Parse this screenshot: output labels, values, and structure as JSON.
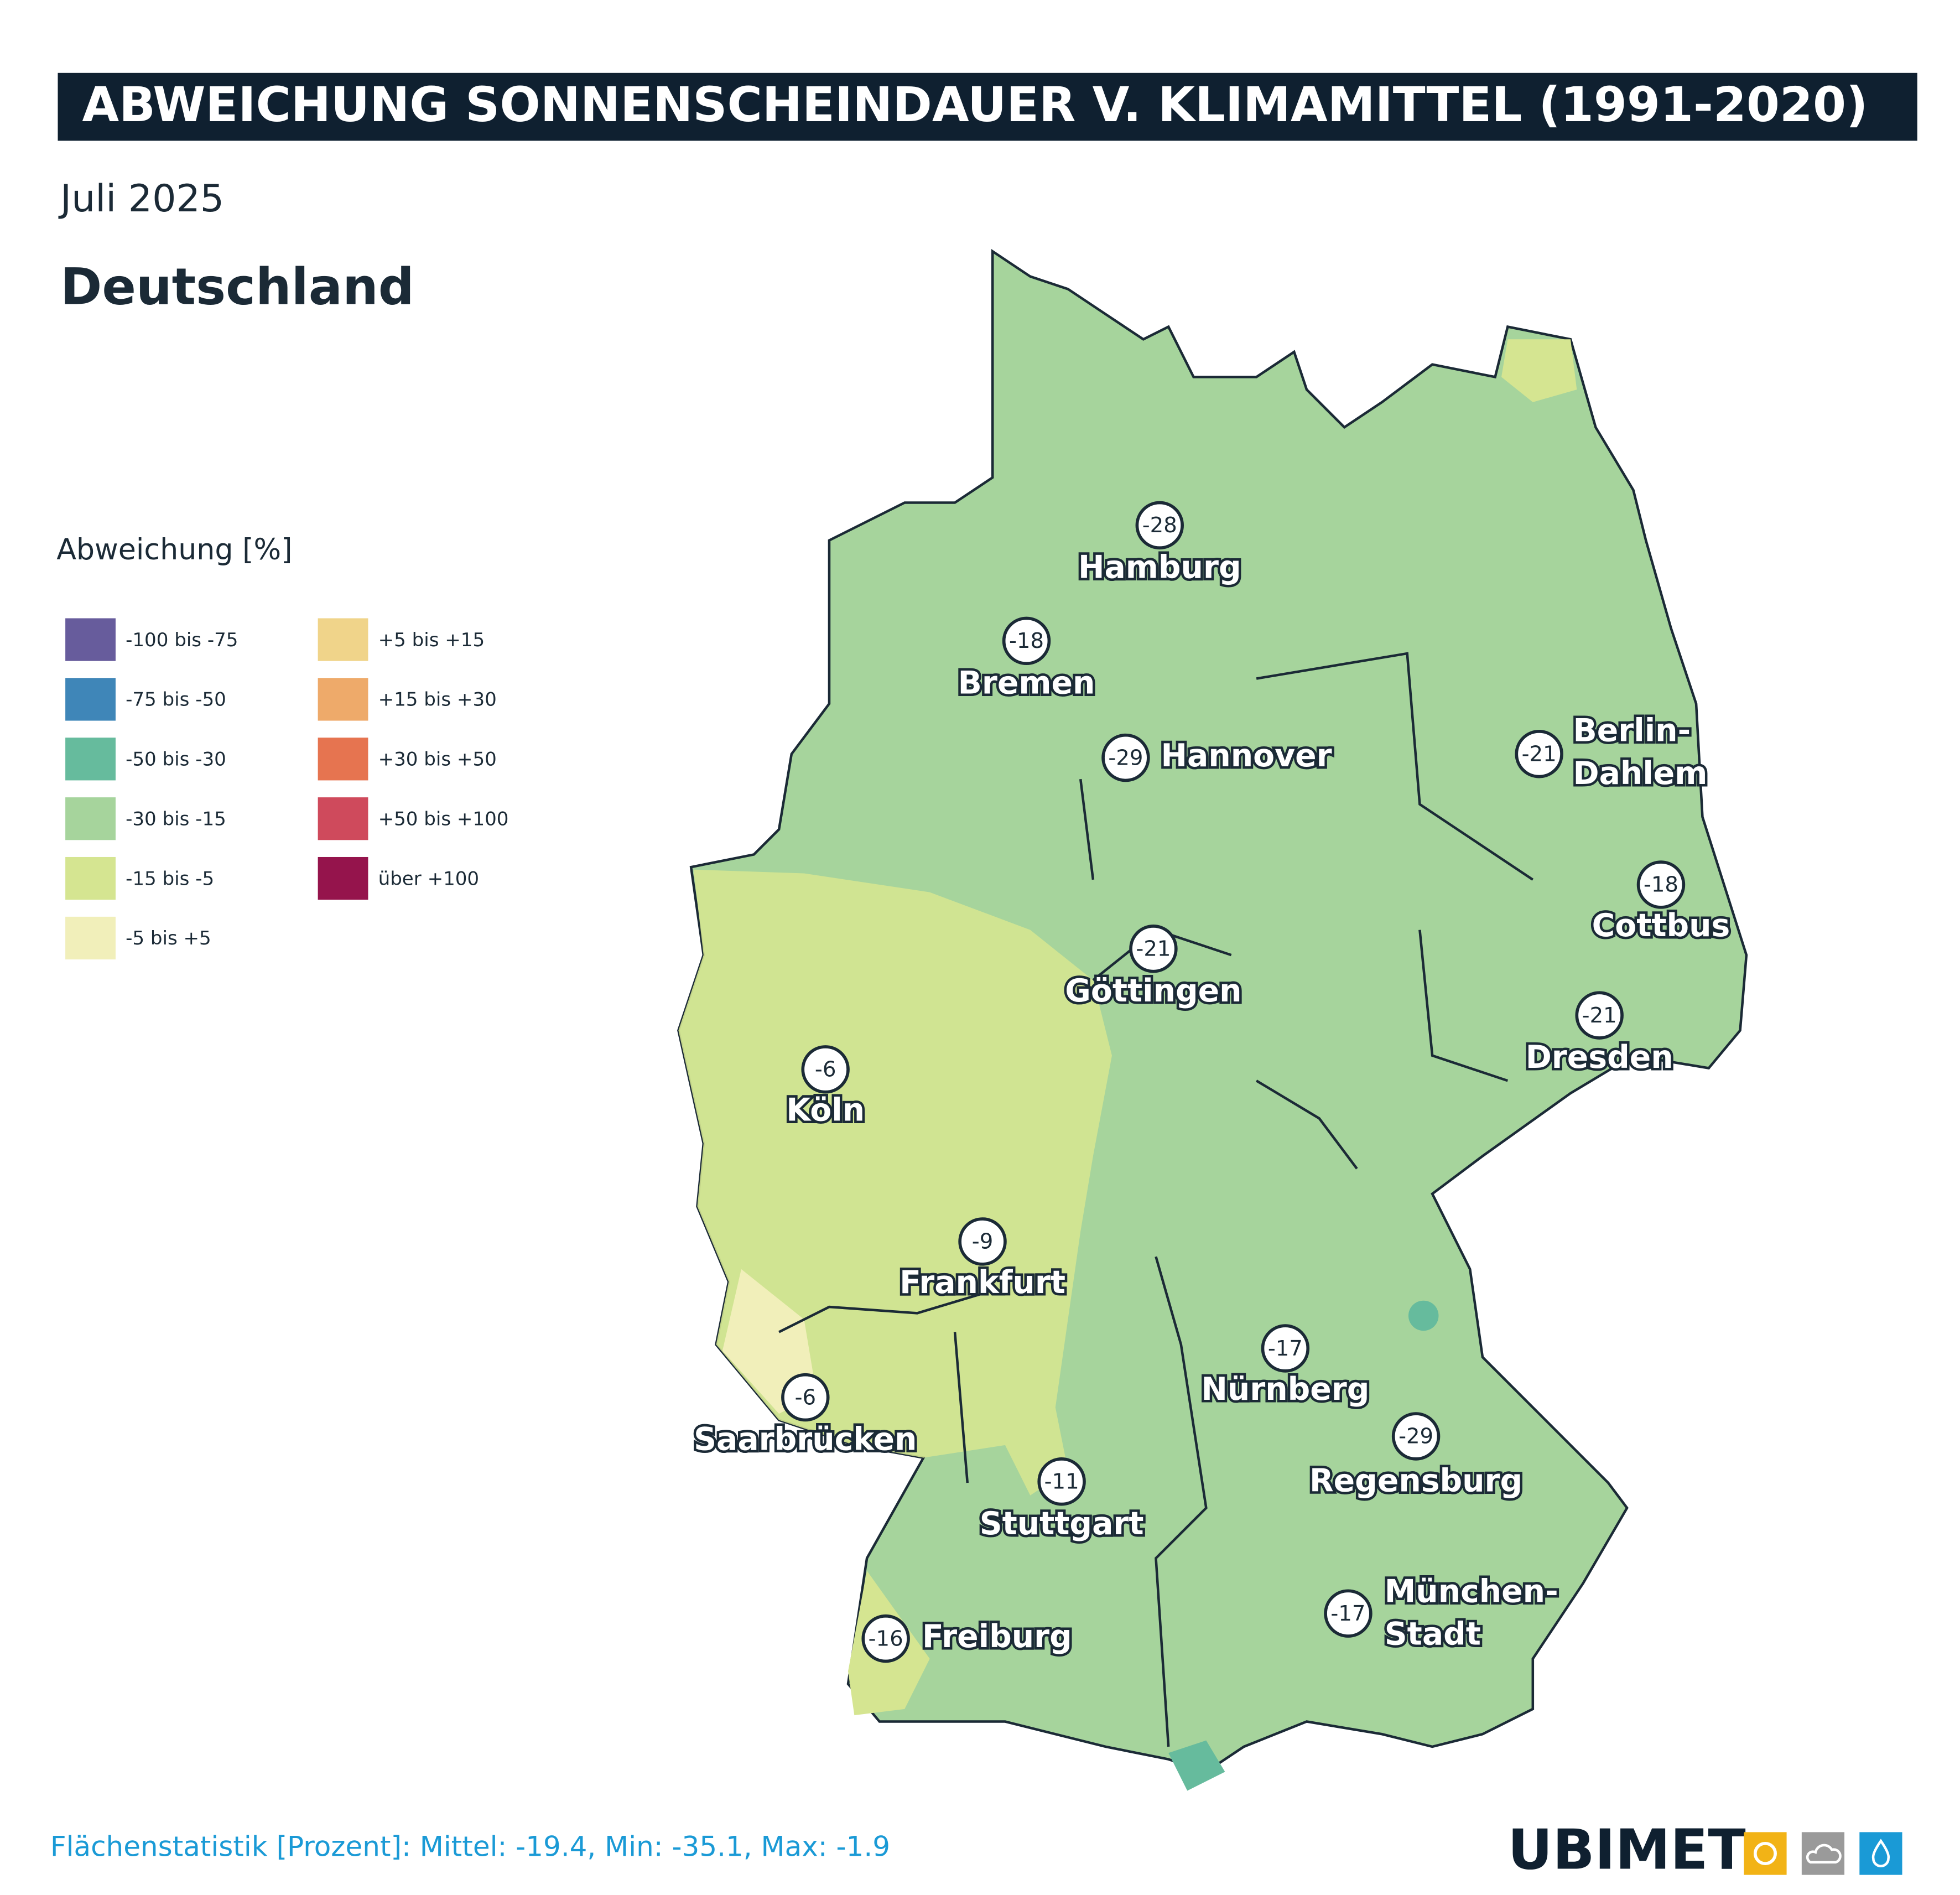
{
  "header": {
    "title": "ABWEICHUNG SONNENSCHEINDAUER V. KLIMAMITTEL (1991-2020)",
    "period": "Juli 2025",
    "region": "Deutschland"
  },
  "legend": {
    "title": "Abweichung [%]",
    "items": [
      {
        "label": "-100 bis -75",
        "color": "#675c9c"
      },
      {
        "label": "-75 bis -50",
        "color": "#3f86b8"
      },
      {
        "label": "-50 bis -30",
        "color": "#66bb9d"
      },
      {
        "label": "-30 bis -15",
        "color": "#a6d49c"
      },
      {
        "label": "-15 bis -5",
        "color": "#d5e591"
      },
      {
        "label": "-5 bis +5",
        "color": "#f1efba"
      },
      {
        "label": "+5 bis +15",
        "color": "#f0d48a"
      },
      {
        "label": "+15 bis +30",
        "color": "#eeaa6a"
      },
      {
        "label": "+30 bis +50",
        "color": "#e67450"
      },
      {
        "label": "+50 bis +100",
        "color": "#cf4a5c"
      },
      {
        "label": "über +100",
        "color": "#95144c"
      }
    ]
  },
  "cities": [
    {
      "name": [
        "Hamburg"
      ],
      "value": -28
    },
    {
      "name": [
        "Bremen"
      ],
      "value": -18
    },
    {
      "name": [
        "Hannover"
      ],
      "value": -29
    },
    {
      "name": [
        "Berlin-",
        "Dahlem"
      ],
      "value": -21
    },
    {
      "name": [
        "Cottbus"
      ],
      "value": -18
    },
    {
      "name": [
        "Göttingen"
      ],
      "value": -21
    },
    {
      "name": [
        "Dresden"
      ],
      "value": -21
    },
    {
      "name": [
        "Köln"
      ],
      "value": -6
    },
    {
      "name": [
        "Frankfurt"
      ],
      "value": -9
    },
    {
      "name": [
        "Nürnberg"
      ],
      "value": -17
    },
    {
      "name": [
        "Saarbrücken"
      ],
      "value": -6
    },
    {
      "name": [
        "Regensburg"
      ],
      "value": -29
    },
    {
      "name": [
        "Stuttgart"
      ],
      "value": -11
    },
    {
      "name": [
        "München-",
        "Stadt"
      ],
      "value": -17
    },
    {
      "name": [
        "Freiburg"
      ],
      "value": -16
    }
  ],
  "footer": {
    "stats": "Flächenstatistik [Prozent]: Mittel: -19.4, Min: -35.1, Max: -1.9",
    "logo": "UBIMET"
  }
}
